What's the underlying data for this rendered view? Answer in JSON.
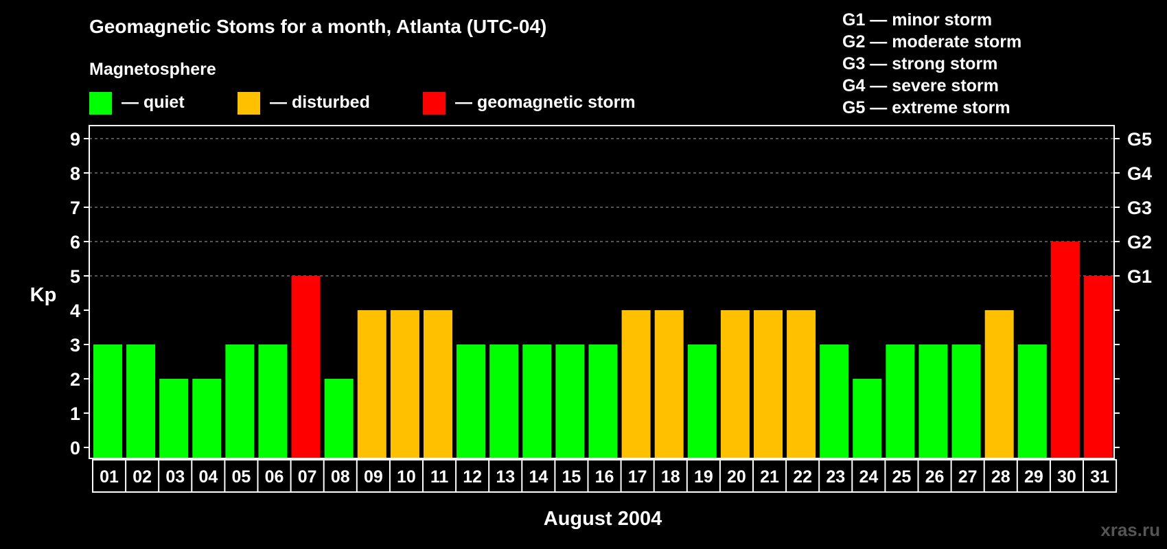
{
  "chart_data": {
    "type": "bar",
    "title": "Geomagnetic Stoms for a month, Atlanta (UTC-04)",
    "subtitle": "Magnetosphere",
    "xlabel": "August 2004",
    "ylabel": "Kp",
    "ylim": [
      0,
      9
    ],
    "yticks": [
      "0",
      "1",
      "2",
      "3",
      "4",
      "5",
      "6",
      "7",
      "8",
      "9"
    ],
    "right_ticks": [
      {
        "value": 5,
        "label": "G1"
      },
      {
        "value": 6,
        "label": "G2"
      },
      {
        "value": 7,
        "label": "G3"
      },
      {
        "value": 8,
        "label": "G4"
      },
      {
        "value": 9,
        "label": "G5"
      }
    ],
    "grid": "dashed horizontal at 5–9",
    "categories": [
      "01",
      "02",
      "03",
      "04",
      "05",
      "06",
      "07",
      "08",
      "09",
      "10",
      "11",
      "12",
      "13",
      "14",
      "15",
      "16",
      "17",
      "18",
      "19",
      "20",
      "21",
      "22",
      "23",
      "24",
      "25",
      "26",
      "27",
      "28",
      "29",
      "30",
      "31"
    ],
    "values": [
      3,
      3,
      2,
      2,
      3,
      3,
      5,
      2,
      4,
      4,
      4,
      3,
      3,
      3,
      3,
      3,
      4,
      4,
      3,
      4,
      4,
      4,
      3,
      2,
      3,
      3,
      3,
      4,
      3,
      6,
      5
    ],
    "colors": {
      "quiet": "#00ff00",
      "disturbed": "#ffc000",
      "storm": "#ff0000"
    },
    "color_rule": "quiet if Kp<=3, disturbed if Kp=4, geomagnetic storm if Kp>=5",
    "legend": [
      {
        "key": "quiet",
        "label": "— quiet"
      },
      {
        "key": "disturbed",
        "label": "— disturbed"
      },
      {
        "key": "storm",
        "label": "— geomagnetic storm"
      }
    ],
    "storm_scale": [
      "G1 — minor storm",
      "G2 — moderate storm",
      "G3 — strong storm",
      "G4 — severe storm",
      "G5 — extreme storm"
    ]
  },
  "watermark": "xras.ru"
}
